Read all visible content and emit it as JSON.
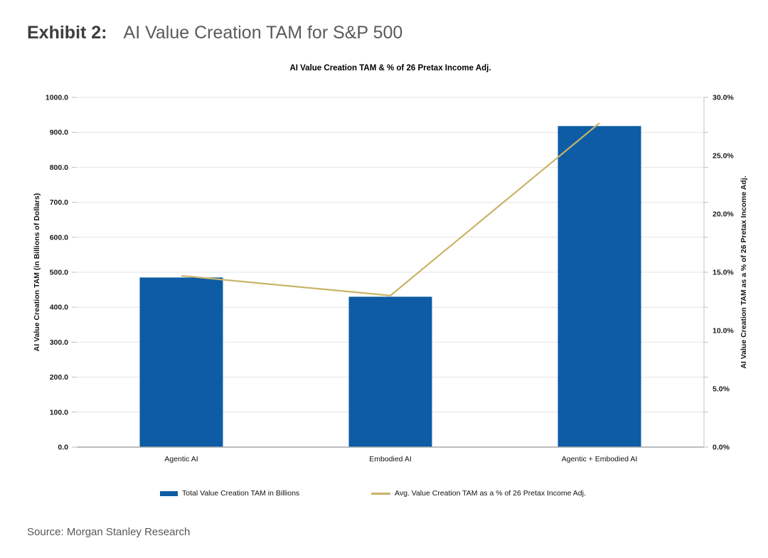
{
  "header": {
    "exhibit_label": "Exhibit 2:",
    "title": "AI Value Creation TAM for S&P 500"
  },
  "source": "Source: Morgan Stanley Research",
  "chart_data": {
    "type": "bar+line",
    "title": "AI Value Creation TAM & % of 26 Pretax Income Adj.",
    "categories": [
      "Agentic AI",
      "Embodied AI",
      "Agentic + Embodied AI"
    ],
    "series": [
      {
        "name": "Total Value Creation TAM in Billions",
        "type": "bar",
        "axis": "left",
        "color": "#0d5ca5",
        "values": [
          485,
          430,
          918
        ]
      },
      {
        "name": "Avg. Value Creation TAM as a % of 26 Pretax Income Adj.",
        "type": "line",
        "axis": "right",
        "color": "#c9b467",
        "values": [
          14.7,
          13.0,
          27.8
        ]
      }
    ],
    "left_axis": {
      "label": "AI Value Creation TAM (in Billions of Dollars)",
      "min": 0,
      "max": 1000,
      "step": 100,
      "suffix": ""
    },
    "right_axis": {
      "label": "AI Value Creation TAM as a % of 26 Pretax Income Adj.",
      "min": 0,
      "max": 30,
      "step": 5,
      "suffix": "%"
    },
    "grid": true,
    "legend_position": "bottom",
    "colors": {
      "grid": "#e4e4e4",
      "tick": "#bfbfbf",
      "axis": "#a9a9a9"
    }
  }
}
